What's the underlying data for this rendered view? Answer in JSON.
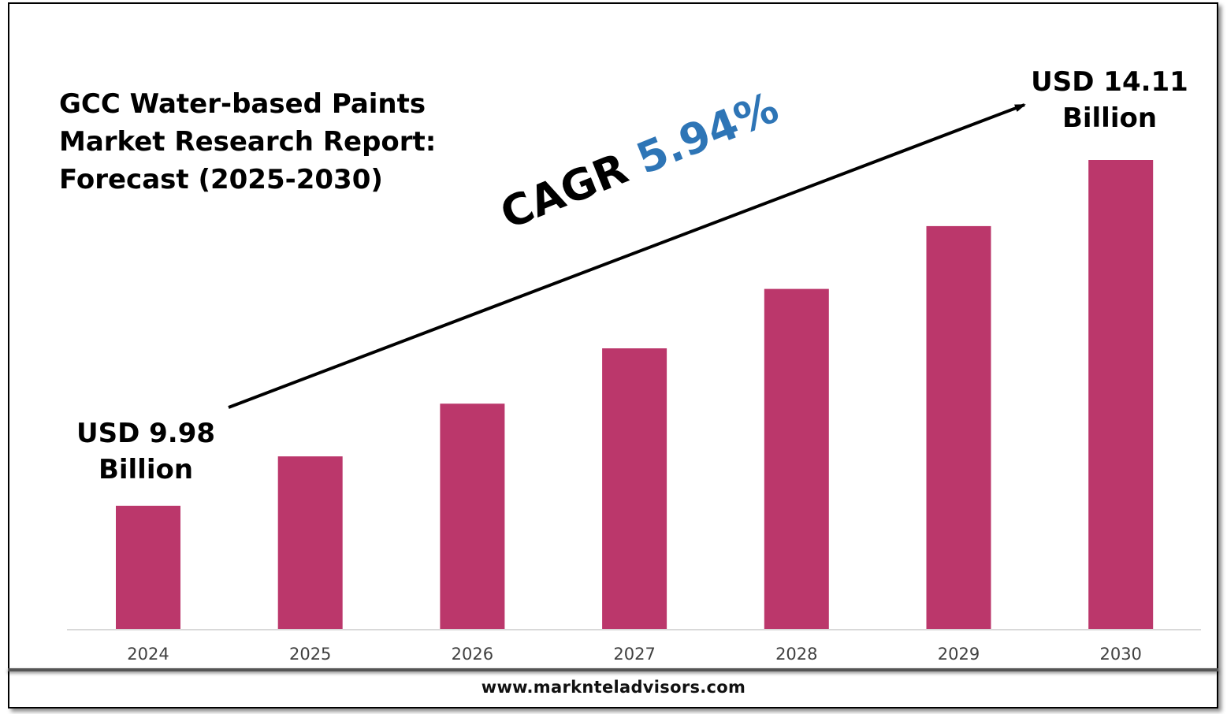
{
  "chart_data": {
    "type": "bar",
    "title": "GCC Water-based Paints\nMarket Research Report:\nForecast (2025-2030)",
    "categories": [
      "2024",
      "2025",
      "2026",
      "2027",
      "2028",
      "2029",
      "2030"
    ],
    "values": [
      9.98,
      10.57,
      11.2,
      11.86,
      12.57,
      13.32,
      14.11
    ],
    "bar_color": "#bb376b",
    "ylim": [
      8.5,
      14.8
    ],
    "grid": false,
    "xlabel": "",
    "ylabel": "",
    "annotations": {
      "start_label": "USD 9.98\nBillion",
      "end_label": "USD 14.11\nBillion",
      "cagr_label": "CAGR",
      "cagr_value": "5.94%",
      "cagr_color": "#2e75b6"
    }
  },
  "footer": {
    "website": "www.marknteladvisors.com"
  }
}
